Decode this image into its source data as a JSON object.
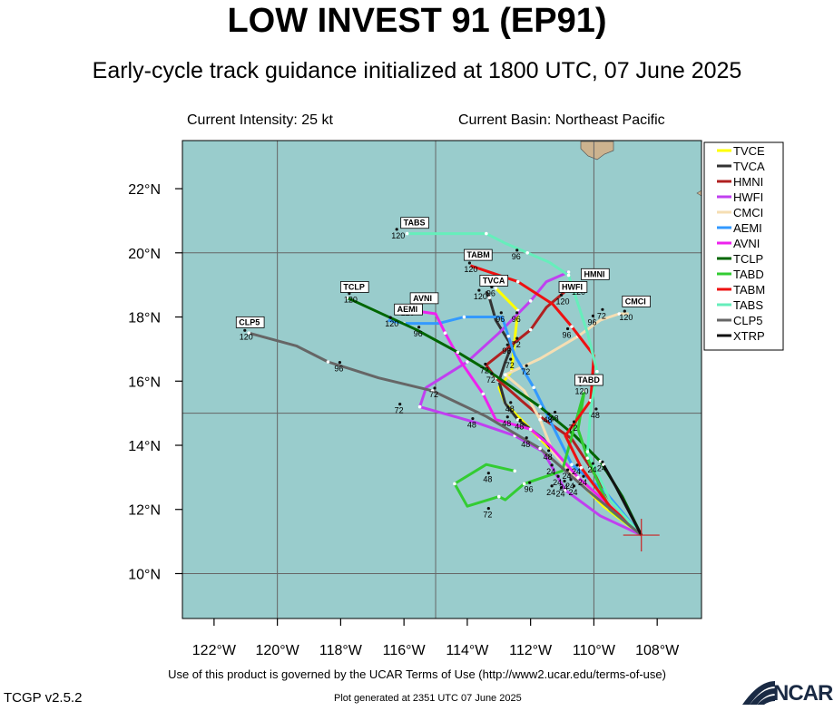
{
  "header": {
    "title": "LOW INVEST 91 (EP91)",
    "subtitle": "Early-cycle track guidance initialized at 1800 UTC, 07 June 2025",
    "current_intensity": "Current Intensity: 25 kt",
    "current_basin": "Current Basin: Northeast Pacific"
  },
  "footer": {
    "terms": "Use of this product is governed by the UCAR Terms of Use (http://www2.ucar.edu/terms-of-use)",
    "version": "TCGP v2.5.2",
    "generated": "Plot generated at 2351 UTC   07 June 2025",
    "logo_text": "NCAR"
  },
  "colors": {
    "ocean": "#99cccc",
    "land": "#ccb38f",
    "grid": "#666666"
  },
  "chart_data": {
    "type": "map-track",
    "lon_range": [
      -123,
      -106.6
    ],
    "lat_range": [
      8.6,
      23.5
    ],
    "x_ticks": [
      {
        "lon": -122,
        "label": "122°W"
      },
      {
        "lon": -120,
        "label": "120°W"
      },
      {
        "lon": -118,
        "label": "118°W"
      },
      {
        "lon": -116,
        "label": "116°W"
      },
      {
        "lon": -114,
        "label": "114°W"
      },
      {
        "lon": -112,
        "label": "112°W"
      },
      {
        "lon": -110,
        "label": "110°W"
      },
      {
        "lon": -108,
        "label": "108°W"
      }
    ],
    "y_ticks": [
      {
        "lat": 10,
        "label": "10°N"
      },
      {
        "lat": 12,
        "label": "12°N"
      },
      {
        "lat": 14,
        "label": "14°N"
      },
      {
        "lat": 16,
        "label": "16°N"
      },
      {
        "lat": 18,
        "label": "18°N"
      },
      {
        "lat": 20,
        "label": "20°N"
      },
      {
        "lat": 22,
        "label": "22°N"
      }
    ],
    "grid_lons": [
      -120,
      -115,
      -110
    ],
    "grid_lats": [
      10,
      15,
      20
    ],
    "storm_position": [
      -108.5,
      11.2
    ],
    "legend_position": "right",
    "series": [
      {
        "name": "TVCE",
        "color": "#ffff00",
        "points": [
          [
            -108.5,
            11.2
          ],
          [
            -109.7,
            12.1
          ],
          [
            -110.4,
            12.8
          ],
          [
            -110.7,
            13.2
          ],
          [
            -111.7,
            14.2
          ],
          [
            -112.3,
            14.8
          ],
          [
            -112.8,
            15.3
          ],
          [
            -113,
            15.8
          ],
          [
            -112.6,
            16.3
          ],
          [
            -112.5,
            17.3
          ],
          [
            -112.4,
            18.2
          ],
          [
            -112.9,
            18.7
          ],
          [
            -113.1,
            18.9
          ]
        ]
      },
      {
        "name": "TVCA",
        "color": "#333333",
        "points": [
          [
            -108.5,
            11.2
          ],
          [
            -109.8,
            12.3
          ],
          [
            -110.5,
            12.9
          ],
          [
            -111.6,
            14.2
          ],
          [
            -112.4,
            14.8
          ],
          [
            -112.8,
            15.3
          ],
          [
            -113,
            16
          ],
          [
            -112.8,
            16.6
          ],
          [
            -112.6,
            17.1
          ],
          [
            -113.1,
            17.9
          ],
          [
            -113.3,
            18.6
          ],
          [
            -113.4,
            18.8
          ]
        ]
      },
      {
        "name": "HMNI",
        "color": "#b02020",
        "points": [
          [
            -108.5,
            11.2
          ],
          [
            -109.5,
            12.3
          ],
          [
            -110.1,
            13.3
          ],
          [
            -110.7,
            14.2
          ],
          [
            -111.7,
            14.9
          ],
          [
            -112.3,
            15.4
          ],
          [
            -113.1,
            16.1
          ],
          [
            -113.4,
            16.5
          ],
          [
            -112,
            17.6
          ],
          [
            -111.5,
            18.3
          ],
          [
            -110.9,
            18.8
          ],
          [
            -110.4,
            18.9
          ]
        ]
      },
      {
        "name": "HWFI",
        "color": "#c040f0",
        "points": [
          [
            -108.5,
            11.2
          ],
          [
            -109.8,
            11.8
          ],
          [
            -110.9,
            12.6
          ],
          [
            -111.6,
            13.8
          ],
          [
            -112.5,
            14.3
          ],
          [
            -113.7,
            14.7
          ],
          [
            -115.5,
            15.2
          ],
          [
            -115.3,
            15.8
          ],
          [
            -114,
            16.6
          ],
          [
            -113,
            17.5
          ],
          [
            -112,
            18.5
          ],
          [
            -111.5,
            19.1
          ],
          [
            -110.8,
            19.4
          ]
        ]
      },
      {
        "name": "CMCI",
        "color": "#f5deb3",
        "points": [
          [
            -108.5,
            11.2
          ],
          [
            -109.6,
            12.1
          ],
          [
            -110.5,
            12.9
          ],
          [
            -111.3,
            13.8
          ],
          [
            -111.7,
            14.8
          ],
          [
            -112.2,
            15.7
          ],
          [
            -112.8,
            16.2
          ],
          [
            -111.7,
            16.7
          ],
          [
            -110.5,
            17.4
          ],
          [
            -109.8,
            17.9
          ],
          [
            -109.2,
            18.1
          ],
          [
            -108.9,
            18.1
          ]
        ]
      },
      {
        "name": "AEMI",
        "color": "#3399ff",
        "points": [
          [
            -108.5,
            11.2
          ],
          [
            -109.6,
            12.5
          ],
          [
            -110.7,
            13.4
          ],
          [
            -111.3,
            14.6
          ],
          [
            -111.9,
            15.8
          ],
          [
            -112.5,
            16.8
          ],
          [
            -112.7,
            17.4
          ],
          [
            -112.9,
            18
          ],
          [
            -114.1,
            18
          ],
          [
            -114.9,
            17.8
          ],
          [
            -116,
            17.8
          ],
          [
            -116.5,
            17.9
          ]
        ]
      },
      {
        "name": "AVNI",
        "color": "#ee22ee",
        "points": [
          [
            -108.5,
            11.2
          ],
          [
            -109.6,
            12.2
          ],
          [
            -110.5,
            13
          ],
          [
            -111.4,
            14
          ],
          [
            -112,
            14.5
          ],
          [
            -113.1,
            14.8
          ],
          [
            -113.5,
            15.6
          ],
          [
            -114.2,
            16.6
          ],
          [
            -114.7,
            17.5
          ],
          [
            -115,
            18.1
          ],
          [
            -115.7,
            18.2
          ],
          [
            -116.1,
            18.2
          ]
        ]
      },
      {
        "name": "TCLP",
        "color": "#006600",
        "points": [
          [
            -108.5,
            11.2
          ],
          [
            -109.1,
            12.4
          ],
          [
            -109.8,
            13.5
          ],
          [
            -110.6,
            14.3
          ],
          [
            -111.7,
            15.2
          ],
          [
            -113.3,
            16.3
          ],
          [
            -114.3,
            16.9
          ],
          [
            -115.6,
            17.6
          ],
          [
            -117.8,
            18.6
          ]
        ]
      },
      {
        "name": "TABD",
        "color": "#33cc33",
        "points": [
          [
            -108.5,
            11.2
          ],
          [
            -109.5,
            12
          ],
          [
            -110.2,
            13.6
          ],
          [
            -110.5,
            14.5
          ],
          [
            -110.3,
            15.7
          ],
          [
            -111,
            13.2
          ],
          [
            -112.2,
            12.8
          ],
          [
            -112.8,
            12.3
          ],
          [
            -113,
            12.4
          ],
          [
            -114,
            12.1
          ],
          [
            -114.4,
            12.8
          ],
          [
            -113.4,
            13.4
          ],
          [
            -112.5,
            13.2
          ]
        ]
      },
      {
        "name": "TABM",
        "color": "#ee1111",
        "points": [
          [
            -108.5,
            11.2
          ],
          [
            -109.5,
            12.1
          ],
          [
            -110.4,
            13.3
          ],
          [
            -110.9,
            14.3
          ],
          [
            -110.1,
            15.4
          ],
          [
            -110,
            16.8
          ],
          [
            -110.7,
            17.7
          ],
          [
            -111.3,
            18.4
          ],
          [
            -112.4,
            19.1
          ],
          [
            -113.9,
            19.6
          ]
        ]
      },
      {
        "name": "TABS",
        "color": "#66eebb",
        "points": [
          [
            -108.5,
            11.2
          ],
          [
            -109.5,
            12.3
          ],
          [
            -110.2,
            13.8
          ],
          [
            -110.1,
            15.1
          ],
          [
            -109.9,
            16.3
          ],
          [
            -110.2,
            17.5
          ],
          [
            -110.8,
            19.3
          ],
          [
            -111.4,
            19.7
          ],
          [
            -112.1,
            20
          ],
          [
            -112.8,
            20.3
          ],
          [
            -113.4,
            20.6
          ],
          [
            -114.5,
            20.6
          ],
          [
            -115.9,
            20.6
          ]
        ]
      },
      {
        "name": "CLP5",
        "color": "#666666",
        "points": [
          [
            -108.5,
            11.2
          ],
          [
            -110.2,
            12.6
          ],
          [
            -111.7,
            13.9
          ],
          [
            -113.4,
            14.9
          ],
          [
            -115.1,
            15.7
          ],
          [
            -116.8,
            16.1
          ],
          [
            -118.4,
            16.6
          ],
          [
            -119.4,
            17.1
          ],
          [
            -120.9,
            17.5
          ]
        ]
      },
      {
        "name": "XTRP",
        "color": "#111111",
        "points": [
          [
            -108.5,
            11.2
          ],
          [
            -109.3,
            12.7
          ],
          [
            -109.7,
            13.4
          ]
        ]
      }
    ],
    "box_labels": [
      {
        "text": "TABS",
        "lon": -116.1,
        "lat": 20.85
      },
      {
        "text": "TABM",
        "lon": -114.1,
        "lat": 19.85
      },
      {
        "text": "TCLP",
        "lon": -118.0,
        "lat": 18.85
      },
      {
        "text": "TVCA",
        "lon": -113.6,
        "lat": 19.05
      },
      {
        "text": "AVNI",
        "lon": -115.8,
        "lat": 18.5
      },
      {
        "text": "AEMI",
        "lon": -116.3,
        "lat": 18.15
      },
      {
        "text": "CLP5",
        "lon": -121.3,
        "lat": 17.75
      },
      {
        "text": "HWFI",
        "lon": -111.1,
        "lat": 18.85
      },
      {
        "text": "HMNI",
        "lon": -110.4,
        "lat": 19.25
      },
      {
        "text": "CMCI",
        "lon": -109.1,
        "lat": 18.4
      },
      {
        "text": "TABD",
        "lon": -110.6,
        "lat": 15.95
      }
    ],
    "hour_labels": [
      {
        "text": "120",
        "lon": -116.4,
        "lat": 20.45
      },
      {
        "text": "96",
        "lon": -112.6,
        "lat": 19.8
      },
      {
        "text": "120",
        "lon": -114.1,
        "lat": 19.4
      },
      {
        "text": "96",
        "lon": -113.4,
        "lat": 18.65
      },
      {
        "text": "120",
        "lon": -113.8,
        "lat": 18.55
      },
      {
        "text": "120",
        "lon": -117.9,
        "lat": 18.45
      },
      {
        "text": "120",
        "lon": -116.1,
        "lat": 18.05
      },
      {
        "text": "120",
        "lon": -116.6,
        "lat": 17.7
      },
      {
        "text": "96",
        "lon": -113.1,
        "lat": 17.85
      },
      {
        "text": "96",
        "lon": -115.7,
        "lat": 17.4
      },
      {
        "text": "120",
        "lon": -121.2,
        "lat": 17.3
      },
      {
        "text": "96",
        "lon": -118.2,
        "lat": 16.3
      },
      {
        "text": "96",
        "lon": -112.6,
        "lat": 17.85
      },
      {
        "text": "96",
        "lon": -111,
        "lat": 17.35
      },
      {
        "text": "120",
        "lon": -111.2,
        "lat": 18.4
      },
      {
        "text": "120",
        "lon": -110.7,
        "lat": 18.7
      },
      {
        "text": "72",
        "lon": -109.9,
        "lat": 17.95
      },
      {
        "text": "96",
        "lon": -110.2,
        "lat": 17.75
      },
      {
        "text": "120",
        "lon": -109.2,
        "lat": 17.9
      },
      {
        "text": "96",
        "lon": -112.9,
        "lat": 16.85
      },
      {
        "text": "72",
        "lon": -112.6,
        "lat": 17.05
      },
      {
        "text": "72",
        "lon": -112.8,
        "lat": 16.4
      },
      {
        "text": "72",
        "lon": -112.3,
        "lat": 16.2
      },
      {
        "text": "72",
        "lon": -113.6,
        "lat": 16.25
      },
      {
        "text": "72",
        "lon": -113.4,
        "lat": 15.95
      },
      {
        "text": "72",
        "lon": -115.2,
        "lat": 15.5
      },
      {
        "text": "72",
        "lon": -116.3,
        "lat": 15
      },
      {
        "text": "120",
        "lon": -110.6,
        "lat": 15.6
      },
      {
        "text": "48",
        "lon": -112.8,
        "lat": 15.05
      },
      {
        "text": "48",
        "lon": -112.9,
        "lat": 14.6
      },
      {
        "text": "48",
        "lon": -112.5,
        "lat": 14.5
      },
      {
        "text": "48",
        "lon": -111.6,
        "lat": 14.7
      },
      {
        "text": "48",
        "lon": -111.4,
        "lat": 14.75
      },
      {
        "text": "48",
        "lon": -110.1,
        "lat": 14.85
      },
      {
        "text": "72",
        "lon": -110.8,
        "lat": 14.45
      },
      {
        "text": "48",
        "lon": -114.0,
        "lat": 14.55
      },
      {
        "text": "48",
        "lon": -112.3,
        "lat": 13.95
      },
      {
        "text": "48",
        "lon": -111.6,
        "lat": 13.55
      },
      {
        "text": "48",
        "lon": -113.5,
        "lat": 12.85
      },
      {
        "text": "72",
        "lon": -113.5,
        "lat": 11.75
      },
      {
        "text": "96",
        "lon": -112.2,
        "lat": 12.55
      },
      {
        "text": "24",
        "lon": -111.5,
        "lat": 13.1
      },
      {
        "text": "24",
        "lon": -111.0,
        "lat": 12.95
      },
      {
        "text": "24",
        "lon": -110.7,
        "lat": 13.1
      },
      {
        "text": "24",
        "lon": -111.3,
        "lat": 12.75
      },
      {
        "text": "24",
        "lon": -110.9,
        "lat": 12.65
      },
      {
        "text": "24",
        "lon": -110.5,
        "lat": 12.75
      },
      {
        "text": "24",
        "lon": -109.9,
        "lat": 13.2
      },
      {
        "text": "24",
        "lon": -110.2,
        "lat": 13.15
      },
      {
        "text": "24",
        "lon": -111.5,
        "lat": 12.45
      },
      {
        "text": "24",
        "lon": -111.2,
        "lat": 12.4
      },
      {
        "text": "24",
        "lon": -110.8,
        "lat": 12.45
      },
      {
        "text": "24",
        "lon": -111.1,
        "lat": 12.6
      }
    ]
  }
}
